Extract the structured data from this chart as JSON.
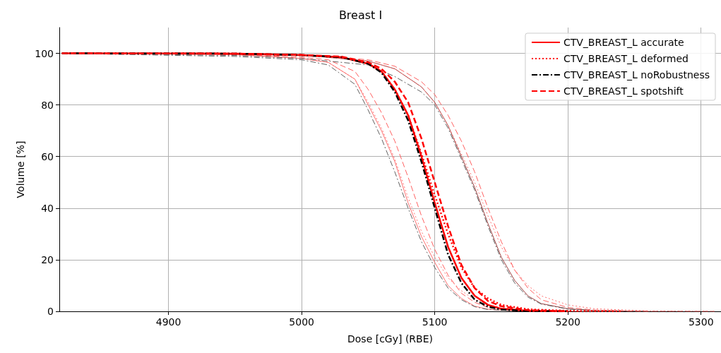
{
  "chart_data": {
    "type": "line",
    "title": "Breast I",
    "xlabel": "Dose [cGy] (RBE)",
    "ylabel": "Volume [%]",
    "xlim": [
      4818,
      5315
    ],
    "ylim": [
      0,
      110
    ],
    "xticks": [
      4900,
      5000,
      5100,
      5200,
      5300
    ],
    "yticks": [
      0,
      20,
      40,
      60,
      80,
      100
    ],
    "grid": true,
    "legend": "top right",
    "marker": "none",
    "series": [
      {
        "color": "#ff7070",
        "line_style": "solid",
        "x": [
          4820,
          4950,
          5000,
          5020,
          5040,
          5050,
          5060,
          5070,
          5080,
          5090,
          5100,
          5110,
          5120,
          5130,
          5140,
          5160,
          5180
        ],
        "values": [
          100,
          99.5,
          98,
          96.5,
          90,
          80,
          70,
          58,
          42,
          29,
          19,
          10,
          5,
          2,
          0.8,
          0.2,
          0
        ]
      },
      {
        "color": "#606060",
        "line_style": "dashdot",
        "x": [
          4820,
          4950,
          5000,
          5020,
          5040,
          5050,
          5060,
          5070,
          5080,
          5090,
          5100,
          5110,
          5120,
          5130,
          5140,
          5160,
          5180
        ],
        "values": [
          100,
          98.8,
          97.5,
          95.5,
          88,
          78,
          67,
          54,
          40,
          27,
          17,
          9,
          4.5,
          1.8,
          0.7,
          0.2,
          0
        ]
      },
      {
        "color": "#ff7070",
        "line_style": "dotted",
        "x": [
          4820,
          4950,
          5000,
          5020,
          5040,
          5050,
          5060,
          5070,
          5080,
          5090,
          5100,
          5110,
          5120,
          5130,
          5140,
          5160,
          5180,
          5200
        ],
        "values": [
          100,
          99.5,
          98,
          96.5,
          90,
          81,
          71,
          59,
          44,
          31,
          21,
          13,
          8,
          4.5,
          2.5,
          0.8,
          0.2,
          0
        ]
      },
      {
        "color": "#ff6060",
        "line_style": "dashed",
        "x": [
          4820,
          4950,
          5000,
          5020,
          5040,
          5050,
          5060,
          5070,
          5080,
          5090,
          5100,
          5110,
          5120,
          5130,
          5140,
          5160,
          5180,
          5310
        ],
        "values": [
          100,
          99.6,
          98.5,
          97.5,
          93,
          86,
          77,
          66,
          52,
          37,
          24,
          14,
          7,
          3.5,
          1.5,
          0.4,
          0.1,
          0
        ]
      },
      {
        "color": "#a04040",
        "line_style": "solid",
        "x": [
          4820,
          4950,
          5000,
          5050,
          5070,
          5090,
          5100,
          5110,
          5120,
          5130,
          5140,
          5150,
          5160,
          5170,
          5180,
          5200,
          5220,
          5260
        ],
        "values": [
          100,
          99.8,
          99.4,
          97,
          94,
          87,
          81,
          72,
          60,
          48,
          34,
          21,
          12,
          6,
          3,
          1,
          0.3,
          0
        ]
      },
      {
        "color": "#606060",
        "line_style": "dashdot",
        "x": [
          4820,
          4950,
          5000,
          5050,
          5070,
          5090,
          5100,
          5110,
          5120,
          5130,
          5140,
          5150,
          5160,
          5170,
          5180,
          5200,
          5220,
          5260
        ],
        "values": [
          100,
          99.2,
          98,
          95.5,
          91,
          85,
          80,
          71,
          59,
          47,
          33,
          20,
          11,
          5.5,
          2.8,
          0.9,
          0.3,
          0
        ]
      },
      {
        "color": "#ff7070",
        "line_style": "dotted",
        "x": [
          4820,
          4950,
          5000,
          5050,
          5070,
          5090,
          5100,
          5110,
          5120,
          5130,
          5140,
          5150,
          5160,
          5170,
          5180,
          5200,
          5220,
          5260,
          5310
        ],
        "values": [
          100,
          99.8,
          99.4,
          97,
          94,
          87,
          81,
          72,
          61,
          50,
          37,
          25,
          16,
          10,
          6,
          2.5,
          1,
          0.2,
          0
        ]
      },
      {
        "color": "#ff6060",
        "line_style": "dashed",
        "x": [
          4820,
          4950,
          5000,
          5050,
          5070,
          5090,
          5100,
          5110,
          5120,
          5130,
          5140,
          5150,
          5160,
          5170,
          5180,
          5200,
          5220,
          5260
        ],
        "values": [
          100,
          99.8,
          99.5,
          97.5,
          95,
          89,
          84,
          76,
          66,
          54,
          40,
          27,
          16,
          9,
          4.5,
          1.5,
          0.5,
          0
        ]
      },
      {
        "name": "CTV_BREAST_L accurate",
        "color": "#ff0000",
        "line_style": "solid",
        "x": [
          4820,
          4950,
          5000,
          5030,
          5050,
          5060,
          5070,
          5080,
          5090,
          5100,
          5110,
          5120,
          5130,
          5140,
          5150,
          5170,
          5200
        ],
        "values": [
          100,
          99.9,
          99.3,
          98.5,
          96,
          93,
          86,
          76,
          60,
          42,
          25,
          13,
          6,
          2.5,
          1,
          0.2,
          0
        ]
      },
      {
        "name": "CTV_BREAST_L deformed",
        "color": "#ff0000",
        "line_style": "dotted",
        "x": [
          4820,
          4950,
          5000,
          5030,
          5050,
          5060,
          5070,
          5080,
          5090,
          5100,
          5110,
          5120,
          5130,
          5140,
          5150,
          5170,
          5200,
          5240
        ],
        "values": [
          100,
          99.9,
          99.3,
          98.5,
          96,
          93,
          86,
          76,
          61,
          45,
          30,
          17,
          9,
          5,
          2.5,
          0.8,
          0.2,
          0
        ]
      },
      {
        "name": "CTV_BREAST_L noRobustness",
        "color": "#000000",
        "line_style": "dashdot",
        "x": [
          4820,
          4950,
          5000,
          5030,
          5050,
          5060,
          5070,
          5080,
          5090,
          5100,
          5110,
          5120,
          5130,
          5140,
          5150,
          5170,
          5200
        ],
        "values": [
          100,
          99.9,
          99.3,
          98.5,
          96,
          92.5,
          85,
          74,
          58,
          40,
          22,
          11,
          4.5,
          1.8,
          0.7,
          0.1,
          0
        ]
      },
      {
        "name": "CTV_BREAST_L spotshift",
        "color": "#ff0000",
        "line_style": "dashed",
        "x": [
          4820,
          4950,
          5000,
          5030,
          5050,
          5060,
          5070,
          5080,
          5090,
          5100,
          5110,
          5120,
          5130,
          5140,
          5150,
          5170,
          5200
        ],
        "values": [
          100,
          99.9,
          99.4,
          98.7,
          96.5,
          94,
          89,
          81,
          67,
          50,
          33,
          18,
          9,
          4,
          2,
          0.5,
          0
        ]
      }
    ]
  }
}
